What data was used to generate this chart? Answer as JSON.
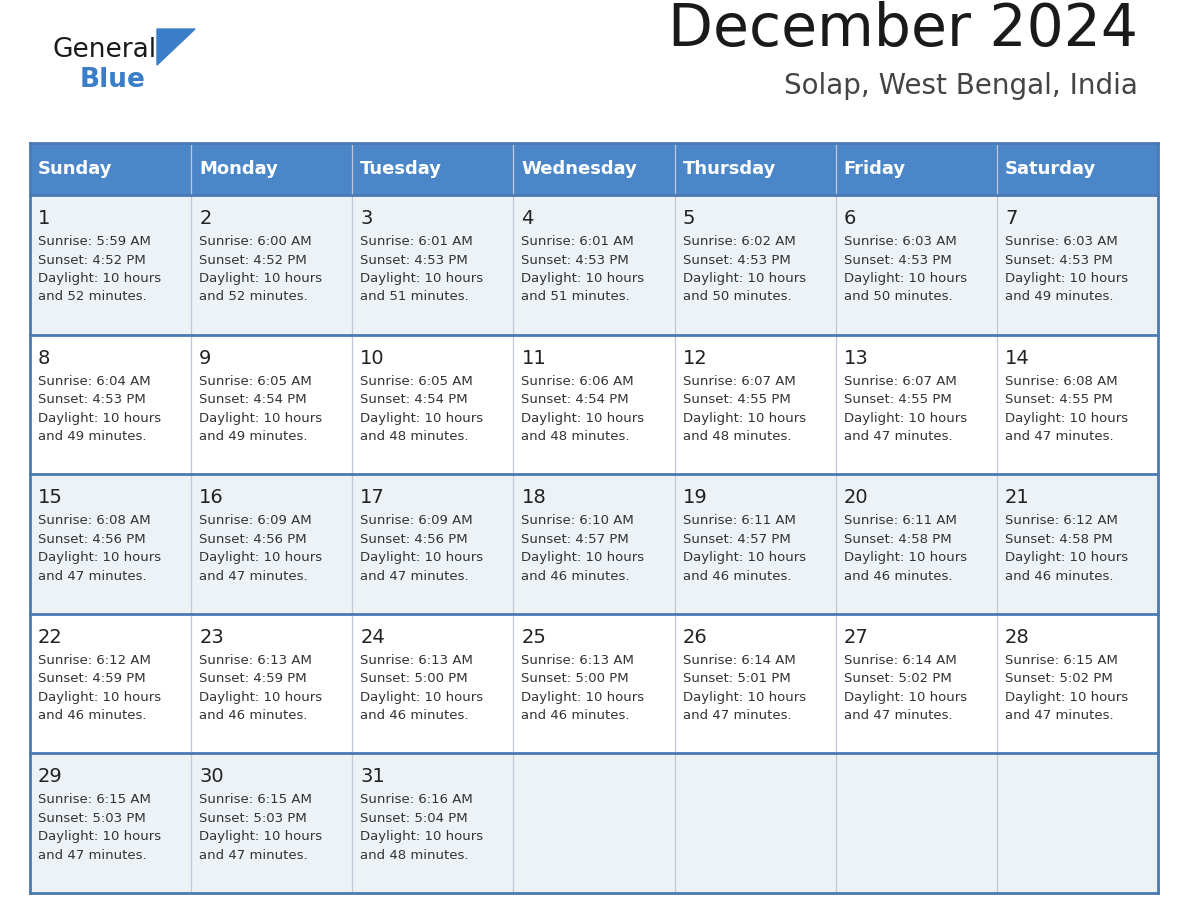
{
  "title": "December 2024",
  "subtitle": "Solap, West Bengal, India",
  "days_of_week": [
    "Sunday",
    "Monday",
    "Tuesday",
    "Wednesday",
    "Thursday",
    "Friday",
    "Saturday"
  ],
  "header_bg": "#4a86c8",
  "header_text": "#ffffff",
  "row_bg_odd": "#edf2f7",
  "row_bg_even": "#ffffff",
  "border_color": "#4a7ab5",
  "sep_color": "#c0c8d8",
  "day_num_color": "#222222",
  "text_color": "#333333",
  "weeks": [
    [
      {
        "day": 1,
        "sunrise": "5:59 AM",
        "sunset": "4:52 PM",
        "daylight": "10 hours and 52 minutes."
      },
      {
        "day": 2,
        "sunrise": "6:00 AM",
        "sunset": "4:52 PM",
        "daylight": "10 hours and 52 minutes."
      },
      {
        "day": 3,
        "sunrise": "6:01 AM",
        "sunset": "4:53 PM",
        "daylight": "10 hours and 51 minutes."
      },
      {
        "day": 4,
        "sunrise": "6:01 AM",
        "sunset": "4:53 PM",
        "daylight": "10 hours and 51 minutes."
      },
      {
        "day": 5,
        "sunrise": "6:02 AM",
        "sunset": "4:53 PM",
        "daylight": "10 hours and 50 minutes."
      },
      {
        "day": 6,
        "sunrise": "6:03 AM",
        "sunset": "4:53 PM",
        "daylight": "10 hours and 50 minutes."
      },
      {
        "day": 7,
        "sunrise": "6:03 AM",
        "sunset": "4:53 PM",
        "daylight": "10 hours and 49 minutes."
      }
    ],
    [
      {
        "day": 8,
        "sunrise": "6:04 AM",
        "sunset": "4:53 PM",
        "daylight": "10 hours and 49 minutes."
      },
      {
        "day": 9,
        "sunrise": "6:05 AM",
        "sunset": "4:54 PM",
        "daylight": "10 hours and 49 minutes."
      },
      {
        "day": 10,
        "sunrise": "6:05 AM",
        "sunset": "4:54 PM",
        "daylight": "10 hours and 48 minutes."
      },
      {
        "day": 11,
        "sunrise": "6:06 AM",
        "sunset": "4:54 PM",
        "daylight": "10 hours and 48 minutes."
      },
      {
        "day": 12,
        "sunrise": "6:07 AM",
        "sunset": "4:55 PM",
        "daylight": "10 hours and 48 minutes."
      },
      {
        "day": 13,
        "sunrise": "6:07 AM",
        "sunset": "4:55 PM",
        "daylight": "10 hours and 47 minutes."
      },
      {
        "day": 14,
        "sunrise": "6:08 AM",
        "sunset": "4:55 PM",
        "daylight": "10 hours and 47 minutes."
      }
    ],
    [
      {
        "day": 15,
        "sunrise": "6:08 AM",
        "sunset": "4:56 PM",
        "daylight": "10 hours and 47 minutes."
      },
      {
        "day": 16,
        "sunrise": "6:09 AM",
        "sunset": "4:56 PM",
        "daylight": "10 hours and 47 minutes."
      },
      {
        "day": 17,
        "sunrise": "6:09 AM",
        "sunset": "4:56 PM",
        "daylight": "10 hours and 47 minutes."
      },
      {
        "day": 18,
        "sunrise": "6:10 AM",
        "sunset": "4:57 PM",
        "daylight": "10 hours and 46 minutes."
      },
      {
        "day": 19,
        "sunrise": "6:11 AM",
        "sunset": "4:57 PM",
        "daylight": "10 hours and 46 minutes."
      },
      {
        "day": 20,
        "sunrise": "6:11 AM",
        "sunset": "4:58 PM",
        "daylight": "10 hours and 46 minutes."
      },
      {
        "day": 21,
        "sunrise": "6:12 AM",
        "sunset": "4:58 PM",
        "daylight": "10 hours and 46 minutes."
      }
    ],
    [
      {
        "day": 22,
        "sunrise": "6:12 AM",
        "sunset": "4:59 PM",
        "daylight": "10 hours and 46 minutes."
      },
      {
        "day": 23,
        "sunrise": "6:13 AM",
        "sunset": "4:59 PM",
        "daylight": "10 hours and 46 minutes."
      },
      {
        "day": 24,
        "sunrise": "6:13 AM",
        "sunset": "5:00 PM",
        "daylight": "10 hours and 46 minutes."
      },
      {
        "day": 25,
        "sunrise": "6:13 AM",
        "sunset": "5:00 PM",
        "daylight": "10 hours and 46 minutes."
      },
      {
        "day": 26,
        "sunrise": "6:14 AM",
        "sunset": "5:01 PM",
        "daylight": "10 hours and 47 minutes."
      },
      {
        "day": 27,
        "sunrise": "6:14 AM",
        "sunset": "5:02 PM",
        "daylight": "10 hours and 47 minutes."
      },
      {
        "day": 28,
        "sunrise": "6:15 AM",
        "sunset": "5:02 PM",
        "daylight": "10 hours and 47 minutes."
      }
    ],
    [
      {
        "day": 29,
        "sunrise": "6:15 AM",
        "sunset": "5:03 PM",
        "daylight": "10 hours and 47 minutes."
      },
      {
        "day": 30,
        "sunrise": "6:15 AM",
        "sunset": "5:03 PM",
        "daylight": "10 hours and 47 minutes."
      },
      {
        "day": 31,
        "sunrise": "6:16 AM",
        "sunset": "5:04 PM",
        "daylight": "10 hours and 48 minutes."
      },
      null,
      null,
      null,
      null
    ]
  ],
  "logo_text_general": "General",
  "logo_text_blue": "Blue",
  "logo_color_general": "#1a1a1a",
  "logo_color_blue": "#3a7ec8",
  "logo_triangle_color": "#3a7ec8"
}
